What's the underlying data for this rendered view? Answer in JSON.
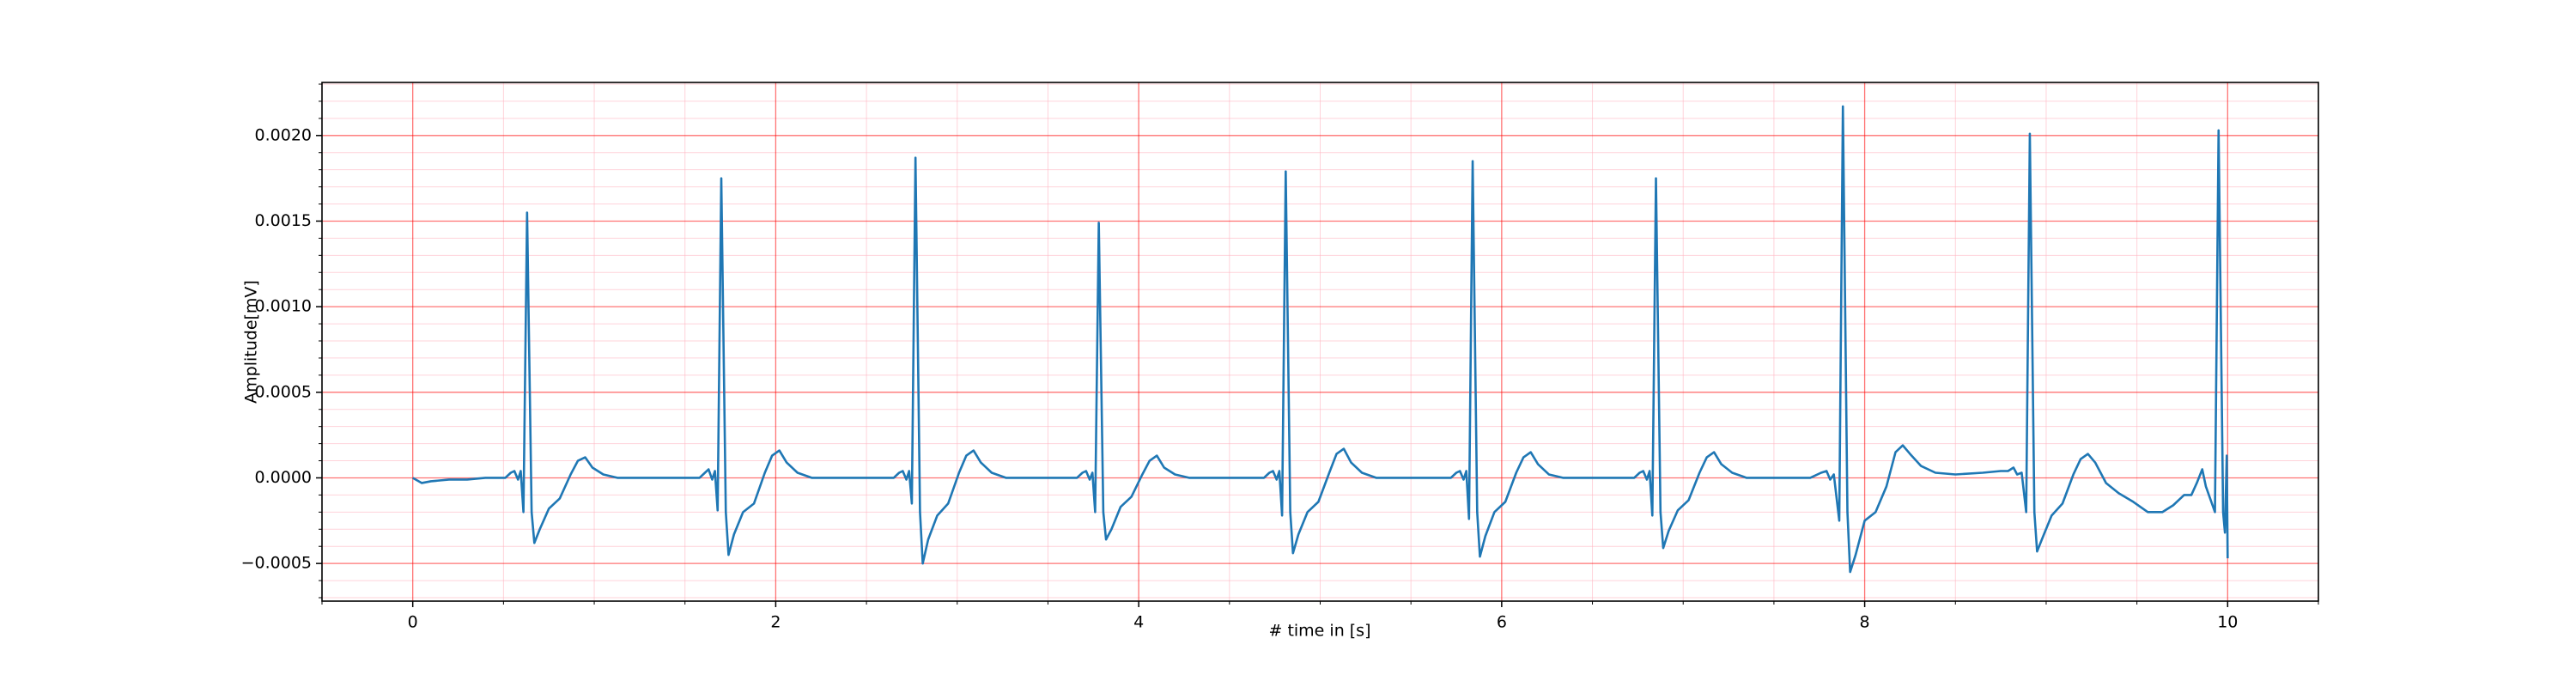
{
  "chart_data": {
    "type": "line",
    "xlabel": "# time in [s]",
    "ylabel": "Amplitude[mV]",
    "color": "#1f77b4",
    "grid": true,
    "grid_color": "#ff0000",
    "minor_grid_color": "#ffb6c1",
    "xlim": [
      -0.5,
      10.5
    ],
    "ylim": [
      -0.00072,
      0.00231
    ],
    "xticks": [
      0,
      2,
      4,
      6,
      8,
      10
    ],
    "yticks": [
      {
        "value": -0.0005,
        "label": "−0.0005"
      },
      {
        "value": 0,
        "label": "0.0000"
      },
      {
        "value": 0.0005,
        "label": "0.0005"
      },
      {
        "value": 0.001,
        "label": "0.0010"
      },
      {
        "value": 0.0015,
        "label": "0.0015"
      },
      {
        "value": 0.002,
        "label": "0.0020"
      }
    ],
    "xminor": [
      -0.5,
      0.5,
      1,
      1.5,
      2.5,
      3,
      3.5,
      4.5,
      5,
      5.5,
      6.5,
      7,
      7.5,
      8.5,
      9,
      9.5,
      10.5
    ],
    "yminor": [
      -0.0007,
      -0.0006,
      -0.0004,
      -0.0003,
      -0.0002,
      -0.0001,
      0.0001,
      0.0002,
      0.0003,
      0.0004,
      0.0006,
      0.0007,
      0.0008,
      0.0009,
      0.0011,
      0.0012,
      0.0013,
      0.0014,
      0.0016,
      0.0017,
      0.0018,
      0.0019,
      0.0021,
      0.0022,
      0.0023
    ],
    "x": [
      0,
      0.05,
      0.1,
      0.2,
      0.3,
      0.4,
      0.5,
      0.51,
      0.54,
      0.56,
      0.58,
      0.595,
      0.61,
      0.63,
      0.655,
      0.67,
      0.7,
      0.75,
      0.81,
      0.87,
      0.91,
      0.95,
      0.99,
      1.05,
      1.13,
      1.23,
      1.35,
      1.5,
      1.58,
      1.61,
      1.63,
      1.65,
      1.665,
      1.68,
      1.7,
      1.725,
      1.74,
      1.77,
      1.82,
      1.88,
      1.94,
      1.98,
      2.02,
      2.06,
      2.12,
      2.2,
      2.3,
      2.45,
      2.6,
      2.65,
      2.68,
      2.7,
      2.72,
      2.735,
      2.75,
      2.77,
      2.795,
      2.81,
      2.84,
      2.89,
      2.95,
      3.01,
      3.05,
      3.09,
      3.13,
      3.19,
      3.27,
      3.37,
      3.5,
      3.6,
      3.66,
      3.69,
      3.71,
      3.73,
      3.745,
      3.76,
      3.78,
      3.805,
      3.82,
      3.85,
      3.9,
      3.96,
      4.02,
      4.06,
      4.1,
      4.14,
      4.2,
      4.28,
      4.38,
      4.55,
      4.65,
      4.69,
      4.72,
      4.74,
      4.76,
      4.775,
      4.79,
      4.81,
      4.835,
      4.85,
      4.88,
      4.93,
      4.99,
      5.05,
      5.09,
      5.13,
      5.17,
      5.23,
      5.31,
      5.41,
      5.55,
      5.68,
      5.72,
      5.75,
      5.77,
      5.79,
      5.805,
      5.82,
      5.84,
      5.865,
      5.88,
      5.91,
      5.96,
      6.02,
      6.08,
      6.12,
      6.16,
      6.2,
      6.26,
      6.34,
      6.44,
      6.6,
      6.7,
      6.73,
      6.76,
      6.78,
      6.8,
      6.815,
      6.83,
      6.85,
      6.875,
      6.89,
      6.92,
      6.97,
      7.03,
      7.09,
      7.13,
      7.17,
      7.21,
      7.27,
      7.35,
      7.45,
      7.6,
      7.7,
      7.76,
      7.79,
      7.81,
      7.83,
      7.86,
      7.88,
      7.905,
      7.92,
      7.95,
      8.0,
      8.06,
      8.12,
      8.17,
      8.21,
      8.25,
      8.31,
      8.39,
      8.5,
      8.65,
      8.75,
      8.79,
      8.82,
      8.84,
      8.865,
      8.89,
      8.91,
      8.935,
      8.95,
      8.98,
      9.03,
      9.09,
      9.15,
      9.19,
      9.23,
      9.27,
      9.33,
      9.4,
      9.48,
      9.56,
      9.64,
      9.7,
      9.76,
      9.8,
      9.83,
      9.86,
      9.88,
      9.93,
      9.95,
      9.975,
      9.985,
      9.995,
      10.0
    ],
    "values": [
      0,
      -3e-05,
      -2e-05,
      -1e-05,
      -1e-05,
      0,
      0,
      0,
      3e-05,
      4e-05,
      -1e-05,
      4e-05,
      -0.0002,
      0.00155,
      -0.0002,
      -0.00038,
      -0.0003,
      -0.00018,
      -0.00012,
      2e-05,
      0.0001,
      0.00012,
      6e-05,
      2e-05,
      0,
      0,
      0,
      0,
      0,
      3e-05,
      5e-05,
      -1e-05,
      4e-05,
      -0.00019,
      0.00175,
      -0.0002,
      -0.00045,
      -0.00033,
      -0.0002,
      -0.00015,
      3e-05,
      0.00013,
      0.00016,
      9e-05,
      3e-05,
      0,
      0,
      0,
      0,
      0,
      3e-05,
      4e-05,
      -1e-05,
      4e-05,
      -0.00015,
      0.00187,
      -0.0002,
      -0.0005,
      -0.00036,
      -0.00022,
      -0.00015,
      3e-05,
      0.00013,
      0.00016,
      9e-05,
      3e-05,
      0,
      0,
      0,
      0,
      0,
      3e-05,
      4e-05,
      -1e-05,
      3e-05,
      -0.0002,
      0.00149,
      -0.0002,
      -0.00036,
      -0.0003,
      -0.00017,
      -0.00011,
      2e-05,
      0.0001,
      0.00013,
      6e-05,
      2e-05,
      0,
      0,
      0,
      0,
      0,
      3e-05,
      4e-05,
      -1e-05,
      4e-05,
      -0.00022,
      0.00179,
      -0.0002,
      -0.00044,
      -0.00033,
      -0.0002,
      -0.00014,
      3e-05,
      0.00014,
      0.00017,
      9e-05,
      3e-05,
      0,
      0,
      0,
      0,
      0,
      3e-05,
      4e-05,
      -1e-05,
      4e-05,
      -0.00024,
      0.00185,
      -0.0002,
      -0.00046,
      -0.00034,
      -0.0002,
      -0.00014,
      3e-05,
      0.00012,
      0.00015,
      8e-05,
      2e-05,
      0,
      0,
      0,
      0,
      0,
      3e-05,
      4e-05,
      -1e-05,
      4e-05,
      -0.00022,
      0.00175,
      -0.0002,
      -0.00041,
      -0.00031,
      -0.00019,
      -0.00013,
      3e-05,
      0.00012,
      0.00015,
      8e-05,
      3e-05,
      0,
      0,
      0,
      0,
      3e-05,
      4e-05,
      -1e-05,
      2e-05,
      -0.00025,
      0.00217,
      -0.0002,
      -0.00055,
      -0.00045,
      -0.00025,
      -0.0002,
      -5e-05,
      0.00015,
      0.00019,
      0.00014,
      7e-05,
      3e-05,
      2e-05,
      3e-05,
      4e-05,
      4e-05,
      6e-05,
      2e-05,
      3e-05,
      -0.0002,
      0.00201,
      -0.0002,
      -0.00043,
      -0.00035,
      -0.00022,
      -0.00015,
      2e-05,
      0.00011,
      0.00014,
      9e-05,
      -3e-05,
      -9e-05,
      -0.00014,
      -0.0002,
      -0.0002,
      -0.00016,
      -0.0001,
      -0.0001,
      -3e-05,
      5e-05,
      -5e-05,
      -0.0002,
      0.00203,
      -0.0002,
      -0.00032,
      0.00013,
      -0.00047
    ]
  }
}
